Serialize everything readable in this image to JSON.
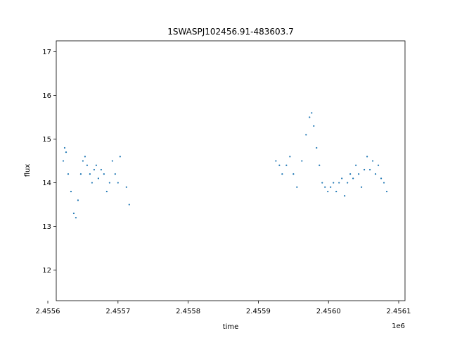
{
  "chart_data": {
    "type": "scatter",
    "title": "1SWASPJ102456.91-483603.7",
    "xlabel": "time",
    "ylabel": "flux",
    "x_offset_label": "1e6",
    "xlim": [
      2455612,
      2456109
    ],
    "ylim": [
      11.3,
      17.25
    ],
    "x_ticks": [
      2455600,
      2455700,
      2455800,
      2455900,
      2456000,
      2456100
    ],
    "x_tick_labels": [
      "2.4556",
      "2.4557",
      "2.4558",
      "2.4559",
      "2.4560",
      "2.4561"
    ],
    "y_ticks": [
      12,
      13,
      14,
      15,
      16,
      17
    ],
    "y_tick_labels": [
      "12",
      "13",
      "14",
      "15",
      "16",
      "17"
    ],
    "grid": false,
    "marker_color": "#1f77b4",
    "series": [
      {
        "values": [
          [
            2455622,
            14.5
          ],
          [
            2455624,
            14.8
          ],
          [
            2455626,
            14.7
          ],
          [
            2455629,
            14.2
          ],
          [
            2455633,
            13.8
          ],
          [
            2455637,
            13.3
          ],
          [
            2455640,
            13.2
          ],
          [
            2455643,
            13.6
          ],
          [
            2455647,
            14.2
          ],
          [
            2455650,
            14.5
          ],
          [
            2455653,
            14.6
          ],
          [
            2455656,
            14.4
          ],
          [
            2455660,
            14.2
          ],
          [
            2455663,
            14.0
          ],
          [
            2455666,
            14.3
          ],
          [
            2455669,
            14.4
          ],
          [
            2455672,
            14.1
          ],
          [
            2455676,
            14.3
          ],
          [
            2455680,
            14.2
          ],
          [
            2455684,
            13.8
          ],
          [
            2455688,
            14.0
          ],
          [
            2455692,
            14.5
          ],
          [
            2455696,
            14.2
          ],
          [
            2455700,
            14.0
          ],
          [
            2455703,
            14.6
          ],
          [
            2455712,
            13.9
          ],
          [
            2455716,
            13.5
          ],
          [
            2455925,
            14.5
          ],
          [
            2455930,
            14.4
          ],
          [
            2455934,
            14.2
          ],
          [
            2455940,
            14.4
          ],
          [
            2455945,
            14.6
          ],
          [
            2455950,
            14.2
          ],
          [
            2455955,
            13.9
          ],
          [
            2455962,
            14.5
          ],
          [
            2455968,
            15.1
          ],
          [
            2455973,
            15.5
          ],
          [
            2455976,
            15.6
          ],
          [
            2455979,
            15.3
          ],
          [
            2455983,
            14.8
          ],
          [
            2455987,
            14.4
          ],
          [
            2455991,
            14.0
          ],
          [
            2455995,
            13.9
          ],
          [
            2455999,
            13.8
          ],
          [
            2456003,
            13.9
          ],
          [
            2456007,
            14.0
          ],
          [
            2456011,
            13.8
          ],
          [
            2456015,
            14.0
          ],
          [
            2456019,
            14.1
          ],
          [
            2456023,
            13.7
          ],
          [
            2456027,
            14.0
          ],
          [
            2456031,
            14.2
          ],
          [
            2456035,
            14.1
          ],
          [
            2456039,
            14.4
          ],
          [
            2456043,
            14.2
          ],
          [
            2456047,
            13.9
          ],
          [
            2456051,
            14.3
          ],
          [
            2456055,
            14.6
          ],
          [
            2456059,
            14.3
          ],
          [
            2456063,
            14.5
          ],
          [
            2456067,
            14.2
          ],
          [
            2456071,
            14.4
          ],
          [
            2456075,
            14.1
          ],
          [
            2456079,
            14.0
          ],
          [
            2456083,
            13.8
          ]
        ]
      }
    ]
  }
}
